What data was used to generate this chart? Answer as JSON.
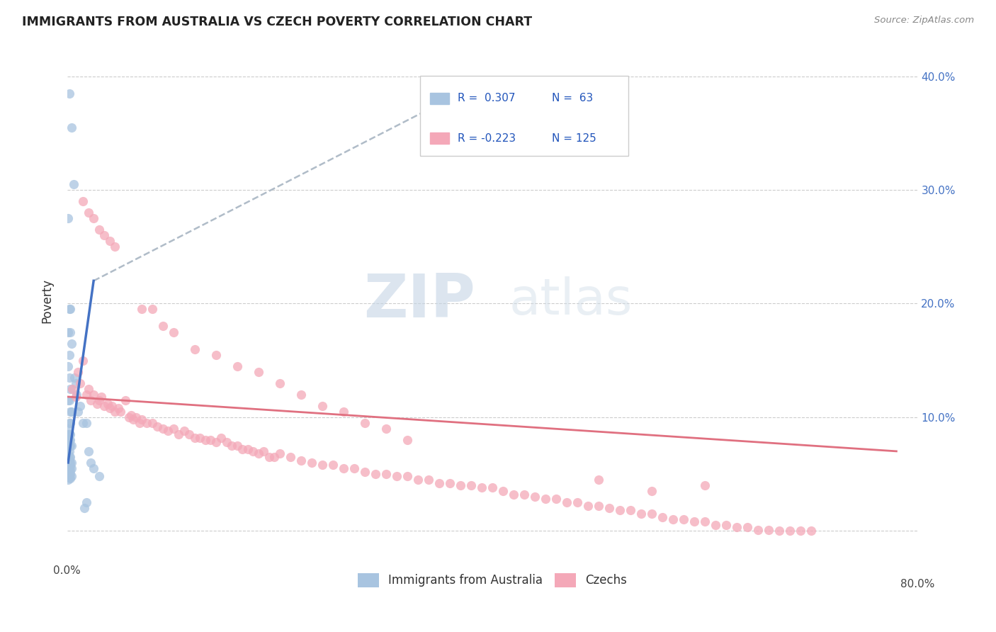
{
  "title": "IMMIGRANTS FROM AUSTRALIA VS CZECH POVERTY CORRELATION CHART",
  "source": "Source: ZipAtlas.com",
  "ylabel": "Poverty",
  "yticks": [
    0.0,
    0.1,
    0.2,
    0.3,
    0.4
  ],
  "ytick_labels": [
    "",
    "10.0%",
    "20.0%",
    "30.0%",
    "40.0%"
  ],
  "xlim": [
    0.0,
    0.8
  ],
  "ylim": [
    -0.025,
    0.43
  ],
  "legend_label1": "Immigrants from Australia",
  "legend_label2": "Czechs",
  "color_blue": "#a8c4e0",
  "color_pink": "#f4a8b8",
  "color_blue_line": "#4472c4",
  "color_pink_line": "#e07080",
  "color_dashed": "#b0bcc8",
  "watermark_zip": "ZIP",
  "watermark_atlas": "atlas",
  "blue_scatter_x": [
    0.002,
    0.004,
    0.001,
    0.006,
    0.003,
    0.002,
    0.001,
    0.003,
    0.004,
    0.002,
    0.001,
    0.002,
    0.003,
    0.001,
    0.002,
    0.003,
    0.004,
    0.002,
    0.003,
    0.001,
    0.002,
    0.001,
    0.003,
    0.002,
    0.001,
    0.003,
    0.002,
    0.004,
    0.003,
    0.002,
    0.001,
    0.002,
    0.003,
    0.001,
    0.002,
    0.004,
    0.003,
    0.002,
    0.001,
    0.003,
    0.004,
    0.002,
    0.003,
    0.001,
    0.002,
    0.003,
    0.004,
    0.002,
    0.003,
    0.001,
    0.007,
    0.008,
    0.009,
    0.01,
    0.012,
    0.015,
    0.018,
    0.02,
    0.022,
    0.025,
    0.018,
    0.016,
    0.03
  ],
  "blue_scatter_y": [
    0.385,
    0.355,
    0.275,
    0.305,
    0.195,
    0.195,
    0.175,
    0.175,
    0.165,
    0.155,
    0.145,
    0.135,
    0.125,
    0.115,
    0.115,
    0.105,
    0.105,
    0.095,
    0.095,
    0.09,
    0.085,
    0.085,
    0.085,
    0.08,
    0.08,
    0.08,
    0.075,
    0.075,
    0.075,
    0.07,
    0.068,
    0.065,
    0.065,
    0.063,
    0.062,
    0.06,
    0.06,
    0.058,
    0.057,
    0.057,
    0.055,
    0.055,
    0.053,
    0.052,
    0.05,
    0.05,
    0.048,
    0.047,
    0.046,
    0.045,
    0.135,
    0.13,
    0.12,
    0.105,
    0.11,
    0.095,
    0.095,
    0.07,
    0.06,
    0.055,
    0.025,
    0.02,
    0.048
  ],
  "pink_scatter_x": [
    0.005,
    0.008,
    0.01,
    0.012,
    0.015,
    0.018,
    0.02,
    0.022,
    0.025,
    0.028,
    0.03,
    0.032,
    0.035,
    0.038,
    0.04,
    0.042,
    0.045,
    0.048,
    0.05,
    0.055,
    0.058,
    0.06,
    0.062,
    0.065,
    0.068,
    0.07,
    0.075,
    0.08,
    0.085,
    0.09,
    0.095,
    0.1,
    0.105,
    0.11,
    0.115,
    0.12,
    0.125,
    0.13,
    0.135,
    0.14,
    0.145,
    0.15,
    0.155,
    0.16,
    0.165,
    0.17,
    0.175,
    0.18,
    0.185,
    0.19,
    0.195,
    0.2,
    0.21,
    0.22,
    0.23,
    0.24,
    0.25,
    0.26,
    0.27,
    0.28,
    0.29,
    0.3,
    0.31,
    0.32,
    0.33,
    0.34,
    0.35,
    0.36,
    0.37,
    0.38,
    0.39,
    0.4,
    0.41,
    0.42,
    0.43,
    0.44,
    0.45,
    0.46,
    0.47,
    0.48,
    0.49,
    0.5,
    0.51,
    0.52,
    0.53,
    0.54,
    0.55,
    0.56,
    0.57,
    0.58,
    0.59,
    0.6,
    0.61,
    0.62,
    0.63,
    0.64,
    0.65,
    0.66,
    0.67,
    0.68,
    0.69,
    0.7,
    0.025,
    0.035,
    0.045,
    0.02,
    0.03,
    0.015,
    0.04,
    0.07,
    0.08,
    0.09,
    0.1,
    0.12,
    0.14,
    0.16,
    0.18,
    0.2,
    0.22,
    0.24,
    0.26,
    0.28,
    0.3,
    0.32,
    0.5,
    0.55,
    0.6
  ],
  "pink_scatter_y": [
    0.125,
    0.118,
    0.14,
    0.13,
    0.15,
    0.12,
    0.125,
    0.115,
    0.12,
    0.112,
    0.115,
    0.118,
    0.11,
    0.112,
    0.108,
    0.11,
    0.105,
    0.108,
    0.105,
    0.115,
    0.1,
    0.102,
    0.098,
    0.1,
    0.095,
    0.098,
    0.095,
    0.095,
    0.092,
    0.09,
    0.088,
    0.09,
    0.085,
    0.088,
    0.085,
    0.082,
    0.082,
    0.08,
    0.08,
    0.078,
    0.082,
    0.078,
    0.075,
    0.075,
    0.072,
    0.072,
    0.07,
    0.068,
    0.07,
    0.065,
    0.065,
    0.068,
    0.065,
    0.062,
    0.06,
    0.058,
    0.058,
    0.055,
    0.055,
    0.052,
    0.05,
    0.05,
    0.048,
    0.048,
    0.045,
    0.045,
    0.042,
    0.042,
    0.04,
    0.04,
    0.038,
    0.038,
    0.035,
    0.032,
    0.032,
    0.03,
    0.028,
    0.028,
    0.025,
    0.025,
    0.022,
    0.022,
    0.02,
    0.018,
    0.018,
    0.015,
    0.015,
    0.012,
    0.01,
    0.01,
    0.008,
    0.008,
    0.005,
    0.005,
    0.003,
    0.003,
    0.001,
    0.001,
    0.0,
    0.0,
    0.0,
    0.0,
    0.275,
    0.26,
    0.25,
    0.28,
    0.265,
    0.29,
    0.255,
    0.195,
    0.195,
    0.18,
    0.175,
    0.16,
    0.155,
    0.145,
    0.14,
    0.13,
    0.12,
    0.11,
    0.105,
    0.095,
    0.09,
    0.08,
    0.045,
    0.035,
    0.04
  ],
  "blue_line_x": [
    0.001,
    0.025
  ],
  "blue_line_y": [
    0.06,
    0.22
  ],
  "dashed_line_x": [
    0.025,
    0.38
  ],
  "dashed_line_y": [
    0.22,
    0.39
  ],
  "pink_line_x": [
    0.0,
    0.78
  ],
  "pink_line_y": [
    0.118,
    0.07
  ]
}
